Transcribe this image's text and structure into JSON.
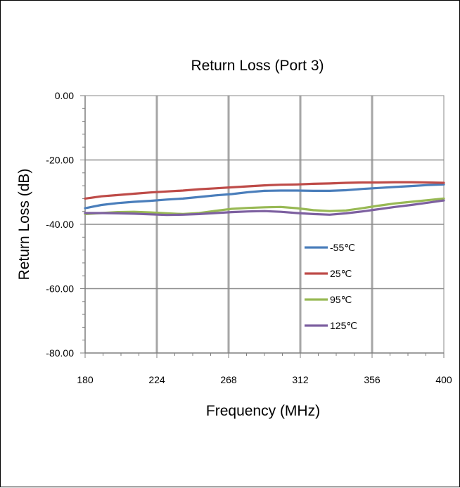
{
  "chart_data": {
    "type": "line",
    "title": "Return Loss (Port 3)",
    "xlabel": "Frequency (MHz)",
    "ylabel": "Return Loss (dB)",
    "xlim": [
      180,
      400
    ],
    "ylim": [
      -80,
      0
    ],
    "x_ticks": [
      "180",
      "224",
      "268",
      "312",
      "356",
      "400"
    ],
    "y_ticks": [
      "0.00",
      "-20.00",
      "-40.00",
      "-60.00",
      "-80.00"
    ],
    "grid": true,
    "legend_position": "right",
    "x": [
      180,
      190,
      200,
      210,
      220,
      230,
      240,
      250,
      260,
      270,
      280,
      290,
      300,
      310,
      320,
      330,
      340,
      350,
      360,
      370,
      380,
      390,
      400
    ],
    "series": [
      {
        "name": "-55℃",
        "color": "#4a7ebb",
        "values": [
          -35.0,
          -34.0,
          -33.4,
          -33.0,
          -32.7,
          -32.3,
          -32.0,
          -31.5,
          -31.0,
          -30.6,
          -30.0,
          -29.6,
          -29.5,
          -29.5,
          -29.6,
          -29.6,
          -29.4,
          -29.0,
          -28.7,
          -28.4,
          -28.1,
          -27.8,
          -27.6
        ]
      },
      {
        "name": "25℃",
        "color": "#be4b48",
        "values": [
          -32.0,
          -31.3,
          -30.9,
          -30.5,
          -30.1,
          -29.8,
          -29.5,
          -29.1,
          -28.8,
          -28.5,
          -28.2,
          -27.9,
          -27.7,
          -27.6,
          -27.4,
          -27.3,
          -27.1,
          -27.0,
          -27.0,
          -26.9,
          -26.9,
          -27.0,
          -27.1
        ]
      },
      {
        "name": "95℃",
        "color": "#98b954",
        "values": [
          -36.8,
          -36.5,
          -36.2,
          -36.1,
          -36.3,
          -36.6,
          -36.8,
          -36.5,
          -35.8,
          -35.2,
          -34.9,
          -34.7,
          -34.6,
          -35.0,
          -35.6,
          -35.9,
          -35.7,
          -35.0,
          -34.2,
          -33.5,
          -33.0,
          -32.5,
          -32.0
        ]
      },
      {
        "name": "125℃",
        "color": "#7d60a0",
        "values": [
          -36.5,
          -36.5,
          -36.6,
          -36.7,
          -36.9,
          -37.1,
          -37.0,
          -36.8,
          -36.5,
          -36.2,
          -36.0,
          -35.9,
          -36.1,
          -36.5,
          -36.8,
          -37.0,
          -36.6,
          -36.0,
          -35.3,
          -34.6,
          -34.0,
          -33.3,
          -32.6
        ]
      }
    ]
  }
}
